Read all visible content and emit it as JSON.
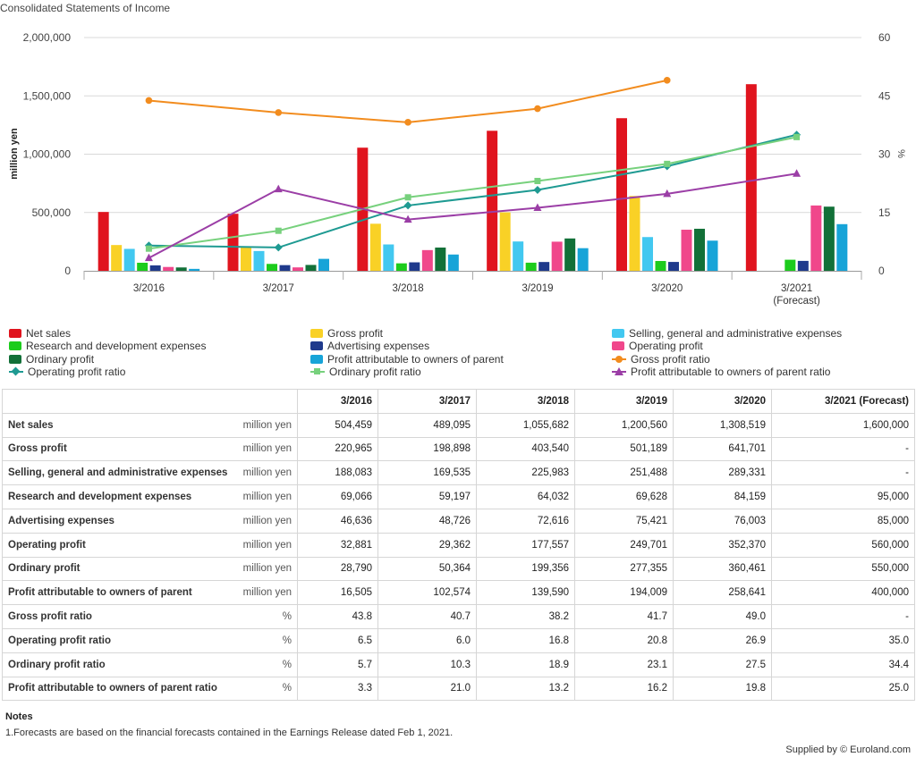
{
  "page_title": "Consolidated Statements of Income",
  "colors": {
    "net_sales": "#e0141e",
    "gross_profit": "#f9d126",
    "sga": "#42c8f0",
    "rnd": "#1ccc1c",
    "advertising": "#1f3a8c",
    "operating_profit": "#f0478b",
    "ordinary_profit": "#127038",
    "profit_parent": "#17a4d8",
    "gross_profit_ratio": "#f28c1e",
    "operating_profit_ratio": "#1e9a92",
    "ordinary_profit_ratio": "#77d17d",
    "profit_parent_ratio": "#9b3ea6"
  },
  "chart_data": {
    "type": "bar",
    "categories": [
      "3/2016",
      "3/2017",
      "3/2018",
      "3/2019",
      "3/2020",
      "3/2021 (Forecast)"
    ],
    "category_lines": [
      [
        "3/2016"
      ],
      [
        "3/2017"
      ],
      [
        "3/2018"
      ],
      [
        "3/2019"
      ],
      [
        "3/2020"
      ],
      [
        "3/2021",
        "(Forecast)"
      ]
    ],
    "ylabel": "million yen",
    "y2label": "%",
    "ylim": [
      0,
      2000000
    ],
    "y2lim": [
      0,
      60
    ],
    "yticks": [
      "0",
      "500,000",
      "1,000,000",
      "1,500,000",
      "2,000,000"
    ],
    "y2ticks": [
      "0",
      "15",
      "30",
      "45",
      "60"
    ],
    "grid": true,
    "legend_position": "bottom",
    "bar_series": [
      {
        "name": "Net sales",
        "color_key": "net_sales",
        "values": [
          504459,
          489095,
          1055682,
          1200560,
          1308519,
          1600000
        ]
      },
      {
        "name": "Gross profit",
        "color_key": "gross_profit",
        "values": [
          220965,
          198898,
          403540,
          501189,
          641701,
          null
        ]
      },
      {
        "name": "Selling, general and administrative expenses",
        "color_key": "sga",
        "values": [
          188083,
          169535,
          225983,
          251488,
          289331,
          null
        ]
      },
      {
        "name": "Research and development expenses",
        "color_key": "rnd",
        "values": [
          69066,
          59197,
          64032,
          69628,
          84159,
          95000
        ]
      },
      {
        "name": "Advertising expenses",
        "color_key": "advertising",
        "values": [
          46636,
          48726,
          72616,
          75421,
          76003,
          85000
        ]
      },
      {
        "name": "Operating profit",
        "color_key": "operating_profit",
        "values": [
          32881,
          29362,
          177557,
          249701,
          352370,
          560000
        ]
      },
      {
        "name": "Ordinary profit",
        "color_key": "ordinary_profit",
        "values": [
          28790,
          50364,
          199356,
          277355,
          360461,
          550000
        ]
      },
      {
        "name": "Profit attributable to owners of parent",
        "color_key": "profit_parent",
        "values": [
          16505,
          102574,
          139590,
          194009,
          258641,
          400000
        ]
      }
    ],
    "line_series": [
      {
        "name": "Gross profit ratio",
        "color_key": "gross_profit_ratio",
        "marker": "circle",
        "values": [
          43.8,
          40.7,
          38.2,
          41.7,
          49.0,
          null
        ]
      },
      {
        "name": "Operating profit ratio",
        "color_key": "operating_profit_ratio",
        "marker": "diamond",
        "values": [
          6.5,
          6.0,
          16.8,
          20.8,
          26.9,
          35.0
        ]
      },
      {
        "name": "Ordinary profit ratio",
        "color_key": "ordinary_profit_ratio",
        "marker": "square",
        "values": [
          5.7,
          10.3,
          18.9,
          23.1,
          27.5,
          34.4
        ]
      },
      {
        "name": "Profit attributable to owners of parent ratio",
        "color_key": "profit_parent_ratio",
        "marker": "triangle",
        "values": [
          3.3,
          21.0,
          13.2,
          16.2,
          19.8,
          25.0
        ]
      }
    ]
  },
  "table": {
    "columns": [
      "3/2016",
      "3/2017",
      "3/2018",
      "3/2019",
      "3/2020",
      "3/2021 (Forecast)"
    ],
    "rows": [
      {
        "name": "Net sales",
        "unit": "million yen",
        "values": [
          "504,459",
          "489,095",
          "1,055,682",
          "1,200,560",
          "1,308,519",
          "1,600,000"
        ]
      },
      {
        "name": "Gross profit",
        "unit": "million yen",
        "values": [
          "220,965",
          "198,898",
          "403,540",
          "501,189",
          "641,701",
          "-"
        ]
      },
      {
        "name": "Selling, general and administrative expenses",
        "unit": "million yen",
        "values": [
          "188,083",
          "169,535",
          "225,983",
          "251,488",
          "289,331",
          "-"
        ]
      },
      {
        "name": "Research and development expenses",
        "unit": "million yen",
        "values": [
          "69,066",
          "59,197",
          "64,032",
          "69,628",
          "84,159",
          "95,000"
        ]
      },
      {
        "name": "Advertising expenses",
        "unit": "million yen",
        "values": [
          "46,636",
          "48,726",
          "72,616",
          "75,421",
          "76,003",
          "85,000"
        ]
      },
      {
        "name": "Operating profit",
        "unit": "million yen",
        "values": [
          "32,881",
          "29,362",
          "177,557",
          "249,701",
          "352,370",
          "560,000"
        ]
      },
      {
        "name": "Ordinary profit",
        "unit": "million yen",
        "values": [
          "28,790",
          "50,364",
          "199,356",
          "277,355",
          "360,461",
          "550,000"
        ]
      },
      {
        "name": "Profit attributable to owners of parent",
        "unit": "million yen",
        "values": [
          "16,505",
          "102,574",
          "139,590",
          "194,009",
          "258,641",
          "400,000"
        ]
      },
      {
        "name": "Gross profit ratio",
        "unit": "%",
        "values": [
          "43.8",
          "40.7",
          "38.2",
          "41.7",
          "49.0",
          "-"
        ]
      },
      {
        "name": "Operating profit ratio",
        "unit": "%",
        "values": [
          "6.5",
          "6.0",
          "16.8",
          "20.8",
          "26.9",
          "35.0"
        ]
      },
      {
        "name": "Ordinary profit ratio",
        "unit": "%",
        "values": [
          "5.7",
          "10.3",
          "18.9",
          "23.1",
          "27.5",
          "34.4"
        ]
      },
      {
        "name": "Profit attributable to owners of parent ratio",
        "unit": "%",
        "values": [
          "3.3",
          "21.0",
          "13.2",
          "16.2",
          "19.8",
          "25.0"
        ]
      }
    ]
  },
  "notes": {
    "title": "Notes",
    "items": [
      "1.Forecasts are based on the financial forecasts contained in the Earnings Release dated Feb 1, 2021."
    ]
  },
  "footer": {
    "supplied": "Supplied by © Euroland.com"
  }
}
